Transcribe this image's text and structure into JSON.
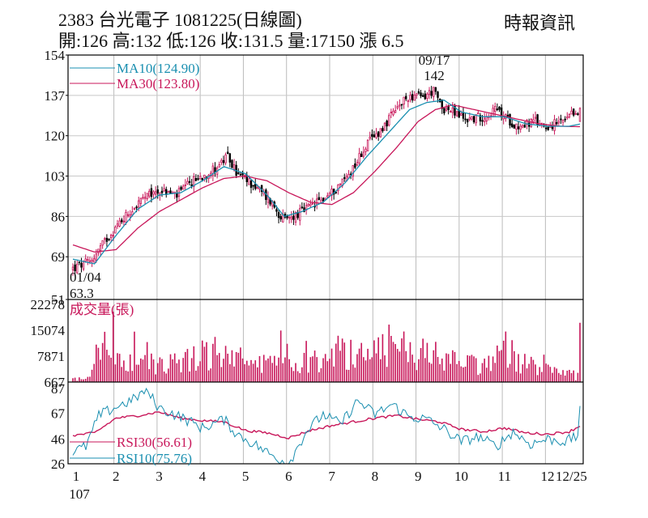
{
  "header": {
    "title": "2383  台光電子 1081225(日線圖)",
    "quote": "開:126 高:132 低:126 收:131.5 量:17150 漲 6.5",
    "source": "時報資訊"
  },
  "colors": {
    "ma10": "#1a8fb0",
    "ma30": "#c8175a",
    "up": "#c8175a",
    "down": "#000000",
    "volume": "#c8175a",
    "rsi30": "#c8175a",
    "rsi10": "#1a8fb0"
  },
  "chart_data": [
    {
      "type": "candlestick",
      "title": "2383 台光電子 1081225(日線圖)",
      "y_ticks": [
        "154",
        "137",
        "120",
        "103",
        "86",
        "69",
        "51"
      ],
      "ylim": [
        51,
        154
      ],
      "ma_legend": [
        "MA10(124.90)",
        "MA30(123.80)"
      ],
      "annotations": {
        "high": {
          "date": "09/17",
          "value": "142"
        },
        "low": {
          "date": "01/04",
          "value": "63.3"
        }
      },
      "last_bar": {
        "open": 126,
        "high": 132,
        "low": 126,
        "close": 131.5
      },
      "close_path_month_value": [
        [
          1.0,
          64
        ],
        [
          1.4,
          67
        ],
        [
          1.8,
          77
        ],
        [
          2.2,
          86
        ],
        [
          2.6,
          93
        ],
        [
          3.0,
          97
        ],
        [
          3.4,
          95
        ],
        [
          3.8,
          101
        ],
        [
          4.2,
          105
        ],
        [
          4.6,
          111
        ],
        [
          4.8,
          104
        ],
        [
          5.2,
          99
        ],
        [
          5.6,
          92
        ],
        [
          5.9,
          84
        ],
        [
          6.2,
          87
        ],
        [
          6.6,
          91
        ],
        [
          7.0,
          96
        ],
        [
          7.4,
          104
        ],
        [
          7.8,
          116
        ],
        [
          8.2,
          124
        ],
        [
          8.5,
          131
        ],
        [
          8.8,
          137
        ],
        [
          9.1,
          136
        ],
        [
          9.35,
          139
        ],
        [
          9.55,
          132
        ],
        [
          9.8,
          130
        ],
        [
          10.1,
          127
        ],
        [
          10.5,
          128
        ],
        [
          10.8,
          131
        ],
        [
          11.0,
          128
        ],
        [
          11.3,
          124
        ],
        [
          11.7,
          126
        ],
        [
          12.0,
          124
        ],
        [
          12.4,
          126
        ],
        [
          12.75,
          131.5
        ]
      ],
      "ma10_path": [
        [
          1.0,
          68
        ],
        [
          1.5,
          66
        ],
        [
          2.0,
          78
        ],
        [
          2.5,
          89
        ],
        [
          3.0,
          95
        ],
        [
          3.5,
          96
        ],
        [
          4.0,
          101
        ],
        [
          4.5,
          107
        ],
        [
          5.0,
          104
        ],
        [
          5.5,
          95
        ],
        [
          5.9,
          86
        ],
        [
          6.3,
          88
        ],
        [
          6.8,
          92
        ],
        [
          7.3,
          100
        ],
        [
          7.8,
          111
        ],
        [
          8.3,
          121
        ],
        [
          8.8,
          131
        ],
        [
          9.2,
          134
        ],
        [
          9.6,
          135
        ],
        [
          10.0,
          130
        ],
        [
          10.5,
          128
        ],
        [
          11.0,
          128
        ],
        [
          11.5,
          125
        ],
        [
          12.0,
          124
        ],
        [
          12.5,
          124
        ],
        [
          12.75,
          124.9
        ]
      ],
      "ma30_path": [
        [
          1.0,
          74
        ],
        [
          1.5,
          71
        ],
        [
          2.0,
          72
        ],
        [
          2.5,
          81
        ],
        [
          3.0,
          88
        ],
        [
          3.5,
          93
        ],
        [
          4.0,
          98
        ],
        [
          4.5,
          102
        ],
        [
          5.0,
          103
        ],
        [
          5.5,
          101
        ],
        [
          6.0,
          96
        ],
        [
          6.5,
          92
        ],
        [
          7.0,
          91
        ],
        [
          7.5,
          96
        ],
        [
          8.0,
          105
        ],
        [
          8.5,
          115
        ],
        [
          9.0,
          126
        ],
        [
          9.4,
          131
        ],
        [
          9.8,
          133
        ],
        [
          10.3,
          131
        ],
        [
          10.8,
          129
        ],
        [
          11.3,
          127
        ],
        [
          11.8,
          125
        ],
        [
          12.3,
          124
        ],
        [
          12.75,
          123.8
        ]
      ]
    },
    {
      "type": "bar",
      "title": "成交量(張)",
      "y_ticks": [
        "22278",
        "15074",
        "7871",
        "667"
      ],
      "ylim": [
        667,
        22278
      ],
      "volume_path": [
        [
          1.0,
          1800
        ],
        [
          1.4,
          2200
        ],
        [
          1.55,
          14000
        ],
        [
          1.8,
          11000
        ],
        [
          2.2,
          8000
        ],
        [
          2.6,
          9500
        ],
        [
          3.0,
          7000
        ],
        [
          3.5,
          8500
        ],
        [
          4.0,
          11000
        ],
        [
          4.5,
          10000
        ],
        [
          5.0,
          8000
        ],
        [
          5.5,
          7000
        ],
        [
          6.0,
          6000
        ],
        [
          6.5,
          8000
        ],
        [
          7.0,
          12000
        ],
        [
          7.5,
          11000
        ],
        [
          8.0,
          14000
        ],
        [
          8.5,
          13000
        ],
        [
          9.0,
          11000
        ],
        [
          9.5,
          10000
        ],
        [
          10.0,
          7000
        ],
        [
          10.5,
          6500
        ],
        [
          11.0,
          13000
        ],
        [
          11.3,
          9000
        ],
        [
          11.8,
          5000
        ],
        [
          12.3,
          4000
        ],
        [
          12.7,
          3000
        ],
        [
          12.75,
          17150
        ]
      ]
    },
    {
      "type": "line",
      "y_ticks": [
        "87",
        "67",
        "46",
        "26"
      ],
      "ylim": [
        26,
        87
      ],
      "series": [
        {
          "name": "RSI30(56.61)",
          "values_path": [
            [
              1.0,
              49
            ],
            [
              1.5,
              51
            ],
            [
              2.0,
              63
            ],
            [
              2.5,
              65
            ],
            [
              3.0,
              68
            ],
            [
              3.5,
              63
            ],
            [
              4.0,
              61
            ],
            [
              4.5,
              60
            ],
            [
              5.0,
              53
            ],
            [
              5.5,
              51
            ],
            [
              6.0,
              47
            ],
            [
              6.5,
              53
            ],
            [
              7.0,
              57
            ],
            [
              7.5,
              60
            ],
            [
              8.0,
              63
            ],
            [
              8.5,
              65
            ],
            [
              9.0,
              62
            ],
            [
              9.5,
              60
            ],
            [
              10.0,
              54
            ],
            [
              10.5,
              52
            ],
            [
              11.0,
              55
            ],
            [
              11.5,
              51
            ],
            [
              12.0,
              50
            ],
            [
              12.5,
              52
            ],
            [
              12.75,
              56.61
            ]
          ]
        },
        {
          "name": "RSI10(75.76)",
          "values_path": [
            [
              1.0,
              36
            ],
            [
              1.3,
              40
            ],
            [
              1.6,
              65
            ],
            [
              2.0,
              72
            ],
            [
              2.4,
              78
            ],
            [
              2.7,
              86
            ],
            [
              3.0,
              71
            ],
            [
              3.5,
              64
            ],
            [
              4.0,
              55
            ],
            [
              4.5,
              62
            ],
            [
              4.8,
              50
            ],
            [
              5.2,
              42
            ],
            [
              5.6,
              33
            ],
            [
              6.0,
              26
            ],
            [
              6.4,
              52
            ],
            [
              6.8,
              66
            ],
            [
              7.2,
              58
            ],
            [
              7.6,
              77
            ],
            [
              8.0,
              66
            ],
            [
              8.4,
              74
            ],
            [
              8.8,
              64
            ],
            [
              9.2,
              62
            ],
            [
              9.6,
              54
            ],
            [
              10.0,
              44
            ],
            [
              10.4,
              48
            ],
            [
              10.8,
              40
            ],
            [
              11.2,
              52
            ],
            [
              11.6,
              42
            ],
            [
              12.0,
              46
            ],
            [
              12.4,
              44
            ],
            [
              12.7,
              48
            ],
            [
              12.75,
              75.76
            ]
          ]
        }
      ]
    }
  ],
  "x_axis": {
    "labels": [
      "1",
      "2",
      "3",
      "4",
      "5",
      "6",
      "7",
      "8",
      "9",
      "10",
      "11",
      "12",
      "12/25"
    ],
    "year": "107"
  }
}
